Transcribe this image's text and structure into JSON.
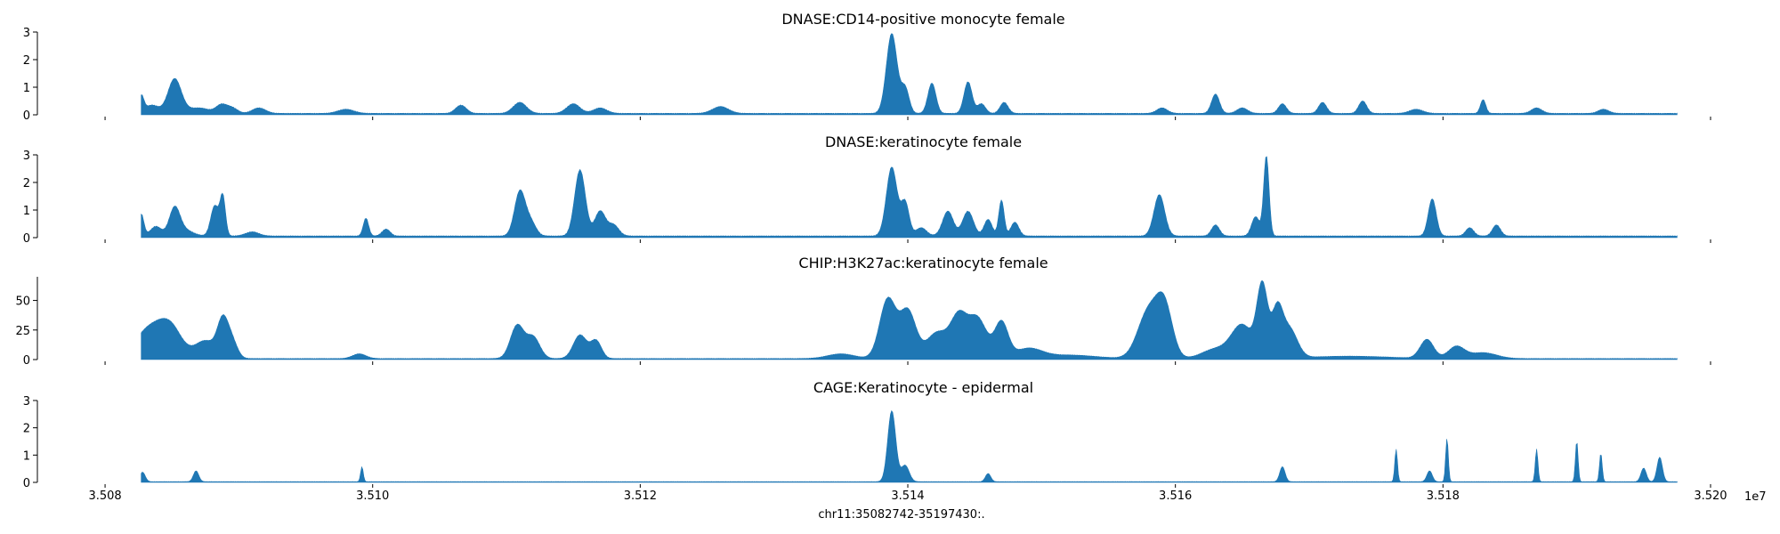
{
  "figure": {
    "xlabel": "chr11:35082742-35197430:.",
    "offset_text": "1e7",
    "x_ticks": [
      "3.508",
      "3.510",
      "3.512",
      "3.514",
      "3.516",
      "3.518",
      "3.520"
    ],
    "x_tick_values": [
      3.508,
      3.51,
      3.512,
      3.514,
      3.516,
      3.518,
      3.52
    ]
  },
  "chart_data": [
    {
      "type": "area",
      "title": "DNASE:CD14-positive monocyte female",
      "color": "#1f77b4",
      "xlim": [
        3.5078,
        3.5201
      ],
      "ylim": [
        0,
        3
      ],
      "y_ticks": [
        "0",
        "1",
        "2",
        "3"
      ],
      "y_tick_values": [
        0,
        1,
        2,
        3
      ],
      "xrange": [
        3.50827,
        3.51975
      ],
      "baseline": 0.06,
      "peaks": [
        {
          "x": 3.50827,
          "y": 0.6,
          "w": 2e-05
        },
        {
          "x": 3.50835,
          "y": 0.3,
          "w": 5e-05
        },
        {
          "x": 3.50852,
          "y": 1.25,
          "w": 5e-05
        },
        {
          "x": 3.5087,
          "y": 0.2,
          "w": 8e-05
        },
        {
          "x": 3.50887,
          "y": 0.3,
          "w": 4e-05
        },
        {
          "x": 3.50895,
          "y": 0.2,
          "w": 4e-05
        },
        {
          "x": 3.50915,
          "y": 0.2,
          "w": 5e-05
        },
        {
          "x": 3.5098,
          "y": 0.15,
          "w": 6e-05
        },
        {
          "x": 3.51066,
          "y": 0.3,
          "w": 4e-05
        },
        {
          "x": 3.5111,
          "y": 0.4,
          "w": 5e-05
        },
        {
          "x": 3.5115,
          "y": 0.35,
          "w": 5e-05
        },
        {
          "x": 3.5117,
          "y": 0.2,
          "w": 5e-05
        },
        {
          "x": 3.5126,
          "y": 0.25,
          "w": 6e-05
        },
        {
          "x": 3.51388,
          "y": 2.9,
          "w": 4e-05
        },
        {
          "x": 3.51398,
          "y": 0.9,
          "w": 3e-05
        },
        {
          "x": 3.51418,
          "y": 1.1,
          "w": 3e-05
        },
        {
          "x": 3.51445,
          "y": 1.15,
          "w": 3e-05
        },
        {
          "x": 3.51455,
          "y": 0.35,
          "w": 3e-05
        },
        {
          "x": 3.51472,
          "y": 0.4,
          "w": 3e-05
        },
        {
          "x": 3.5163,
          "y": 0.7,
          "w": 3e-05
        },
        {
          "x": 3.5159,
          "y": 0.2,
          "w": 4e-05
        },
        {
          "x": 3.5165,
          "y": 0.2,
          "w": 4e-05
        },
        {
          "x": 3.5168,
          "y": 0.35,
          "w": 3e-05
        },
        {
          "x": 3.5171,
          "y": 0.4,
          "w": 3e-05
        },
        {
          "x": 3.5174,
          "y": 0.45,
          "w": 3e-05
        },
        {
          "x": 3.5178,
          "y": 0.15,
          "w": 5e-05
        },
        {
          "x": 3.5183,
          "y": 0.5,
          "w": 2e-05
        },
        {
          "x": 3.5187,
          "y": 0.2,
          "w": 4e-05
        },
        {
          "x": 3.5192,
          "y": 0.15,
          "w": 4e-05
        }
      ]
    },
    {
      "type": "area",
      "title": "DNASE:keratinocyte female",
      "color": "#1f77b4",
      "xlim": [
        3.5078,
        3.5201
      ],
      "ylim": [
        0,
        3
      ],
      "y_ticks": [
        "0",
        "1",
        "2",
        "3"
      ],
      "y_tick_values": [
        0,
        1,
        2,
        3
      ],
      "xrange": [
        3.50827,
        3.51975
      ],
      "baseline": 0.07,
      "peaks": [
        {
          "x": 3.50827,
          "y": 0.8,
          "w": 2e-05
        },
        {
          "x": 3.50838,
          "y": 0.35,
          "w": 4e-05
        },
        {
          "x": 3.50852,
          "y": 1.0,
          "w": 4e-05
        },
        {
          "x": 3.5086,
          "y": 0.2,
          "w": 6e-05
        },
        {
          "x": 3.50882,
          "y": 1.1,
          "w": 3e-05
        },
        {
          "x": 3.50888,
          "y": 1.4,
          "w": 2e-05
        },
        {
          "x": 3.5091,
          "y": 0.15,
          "w": 5e-05
        },
        {
          "x": 3.50995,
          "y": 0.65,
          "w": 2e-05
        },
        {
          "x": 3.5101,
          "y": 0.25,
          "w": 3e-05
        },
        {
          "x": 3.5111,
          "y": 1.6,
          "w": 4e-05
        },
        {
          "x": 3.51118,
          "y": 0.5,
          "w": 4e-05
        },
        {
          "x": 3.51155,
          "y": 2.4,
          "w": 4e-05
        },
        {
          "x": 3.5117,
          "y": 0.9,
          "w": 4e-05
        },
        {
          "x": 3.5118,
          "y": 0.4,
          "w": 4e-05
        },
        {
          "x": 3.51388,
          "y": 2.5,
          "w": 4e-05
        },
        {
          "x": 3.51398,
          "y": 1.2,
          "w": 3e-05
        },
        {
          "x": 3.5141,
          "y": 0.3,
          "w": 4e-05
        },
        {
          "x": 3.5143,
          "y": 0.9,
          "w": 4e-05
        },
        {
          "x": 3.51445,
          "y": 0.9,
          "w": 4e-05
        },
        {
          "x": 3.5146,
          "y": 0.6,
          "w": 3e-05
        },
        {
          "x": 3.5147,
          "y": 1.3,
          "w": 2e-05
        },
        {
          "x": 3.5148,
          "y": 0.5,
          "w": 3e-05
        },
        {
          "x": 3.51588,
          "y": 1.5,
          "w": 4e-05
        },
        {
          "x": 3.5163,
          "y": 0.4,
          "w": 3e-05
        },
        {
          "x": 3.5166,
          "y": 0.7,
          "w": 3e-05
        },
        {
          "x": 3.51668,
          "y": 2.9,
          "w": 2e-05
        },
        {
          "x": 3.51792,
          "y": 1.35,
          "w": 3e-05
        },
        {
          "x": 3.5182,
          "y": 0.3,
          "w": 3e-05
        },
        {
          "x": 3.5184,
          "y": 0.4,
          "w": 3e-05
        }
      ]
    },
    {
      "type": "area",
      "title": "CHIP:H3K27ac:keratinocyte female",
      "color": "#1f77b4",
      "xlim": [
        3.5078,
        3.5201
      ],
      "ylim": [
        0,
        70
      ],
      "y_ticks": [
        "0",
        "25",
        "50"
      ],
      "y_tick_values": [
        0,
        25,
        50
      ],
      "xrange": [
        3.50827,
        3.51975
      ],
      "baseline": 1.0,
      "peaks": [
        {
          "x": 3.50835,
          "y": 27,
          "w": 0.00012
        },
        {
          "x": 3.5085,
          "y": 18,
          "w": 8e-05
        },
        {
          "x": 3.50875,
          "y": 15,
          "w": 8e-05
        },
        {
          "x": 3.50888,
          "y": 30,
          "w": 4e-05
        },
        {
          "x": 3.50895,
          "y": 14,
          "w": 4e-05
        },
        {
          "x": 3.5099,
          "y": 4,
          "w": 5e-05
        },
        {
          "x": 3.51108,
          "y": 28,
          "w": 5e-05
        },
        {
          "x": 3.5112,
          "y": 18,
          "w": 5e-05
        },
        {
          "x": 3.51155,
          "y": 20,
          "w": 5e-05
        },
        {
          "x": 3.51167,
          "y": 15,
          "w": 4e-05
        },
        {
          "x": 3.5135,
          "y": 4,
          "w": 0.0001
        },
        {
          "x": 3.51385,
          "y": 50,
          "w": 6e-05
        },
        {
          "x": 3.514,
          "y": 40,
          "w": 6e-05
        },
        {
          "x": 3.51422,
          "y": 22,
          "w": 8e-05
        },
        {
          "x": 3.51438,
          "y": 33,
          "w": 6e-05
        },
        {
          "x": 3.51452,
          "y": 34,
          "w": 7e-05
        },
        {
          "x": 3.5147,
          "y": 30,
          "w": 5e-05
        },
        {
          "x": 3.5149,
          "y": 8,
          "w": 0.0001
        },
        {
          "x": 3.5152,
          "y": 3,
          "w": 0.0002
        },
        {
          "x": 3.5158,
          "y": 40,
          "w": 8e-05
        },
        {
          "x": 3.51592,
          "y": 40,
          "w": 6e-05
        },
        {
          "x": 3.5163,
          "y": 8,
          "w": 0.0001
        },
        {
          "x": 3.5165,
          "y": 28,
          "w": 8e-05
        },
        {
          "x": 3.51665,
          "y": 60,
          "w": 4e-05
        },
        {
          "x": 3.51676,
          "y": 38,
          "w": 4e-05
        },
        {
          "x": 3.51685,
          "y": 25,
          "w": 6e-05
        },
        {
          "x": 3.5173,
          "y": 2,
          "w": 0.0003
        },
        {
          "x": 3.51788,
          "y": 16,
          "w": 5e-05
        },
        {
          "x": 3.5181,
          "y": 10,
          "w": 6e-05
        },
        {
          "x": 3.5183,
          "y": 5,
          "w": 0.0001
        }
      ]
    },
    {
      "type": "area",
      "title": "CAGE:Keratinocyte - epidermal",
      "color": "#1f77b4",
      "xlim": [
        3.5078,
        3.5201
      ],
      "ylim": [
        0,
        3
      ],
      "y_ticks": [
        "0",
        "1",
        "2",
        "3"
      ],
      "y_tick_values": [
        0,
        1,
        2,
        3
      ],
      "xrange": [
        3.50827,
        3.51975
      ],
      "baseline": 0.03,
      "peaks": [
        {
          "x": 3.50828,
          "y": 0.35,
          "w": 2e-05
        },
        {
          "x": 3.50868,
          "y": 0.4,
          "w": 2e-05
        },
        {
          "x": 3.50992,
          "y": 0.55,
          "w": 1e-05
        },
        {
          "x": 3.51388,
          "y": 2.6,
          "w": 3e-05
        },
        {
          "x": 3.51398,
          "y": 0.6,
          "w": 3e-05
        },
        {
          "x": 3.5146,
          "y": 0.3,
          "w": 2e-05
        },
        {
          "x": 3.5168,
          "y": 0.55,
          "w": 2e-05
        },
        {
          "x": 3.51765,
          "y": 1.2,
          "w": 1e-05
        },
        {
          "x": 3.5179,
          "y": 0.4,
          "w": 2e-05
        },
        {
          "x": 3.51803,
          "y": 1.6,
          "w": 1e-05
        },
        {
          "x": 3.5187,
          "y": 1.2,
          "w": 1e-05
        },
        {
          "x": 3.519,
          "y": 1.5,
          "w": 1e-05
        },
        {
          "x": 3.51918,
          "y": 1.05,
          "w": 1e-05
        },
        {
          "x": 3.5195,
          "y": 0.5,
          "w": 2e-05
        },
        {
          "x": 3.51962,
          "y": 0.9,
          "w": 2e-05
        }
      ]
    }
  ]
}
